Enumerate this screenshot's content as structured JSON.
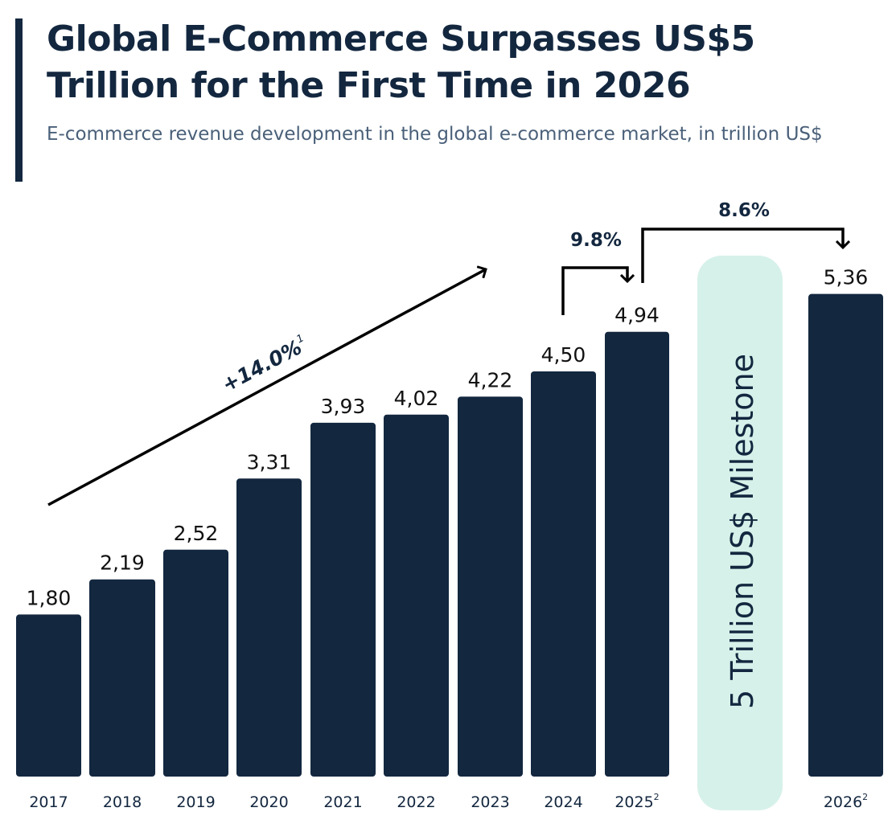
{
  "title": "Global E-Commerce Surpasses US$5 Trillion for the First Time in 2026",
  "subtitle": "E-commerce revenue development in the global e-commerce market, in trillion US$",
  "colors": {
    "bar": "#13273f",
    "milestone_band": "#d6f1ea",
    "text": "#13273f",
    "subtitle": "#4a6079"
  },
  "chart_data": {
    "type": "bar",
    "title": "Global E-Commerce Surpasses US$5 Trillion for the First Time in 2026",
    "subtitle": "E-commerce revenue development in the global e-commerce market, in trillion US$",
    "categories": [
      "2017",
      "2018",
      "2019",
      "2020",
      "2021",
      "2022",
      "2023",
      "2024",
      "2025",
      "2026"
    ],
    "category_footnotes": [
      "",
      "",
      "",
      "",
      "",
      "",
      "",
      "",
      "2",
      "2"
    ],
    "values": [
      1.8,
      2.19,
      2.52,
      3.31,
      3.93,
      4.02,
      4.22,
      4.5,
      4.94,
      5.36
    ],
    "data_labels": [
      "1,80",
      "2,19",
      "2,52",
      "3,31",
      "3,93",
      "4,02",
      "4,22",
      "4,50",
      "4,94",
      "5,36"
    ],
    "ylim": [
      0,
      5.5
    ],
    "grid": false,
    "annotations": {
      "cagr": {
        "text": "+14.0%",
        "footnote": "1"
      },
      "growth_2024_2025": "9.8%",
      "growth_2025_2026": "8.6%",
      "milestone": "5 Trillion US$ Milestone"
    }
  }
}
